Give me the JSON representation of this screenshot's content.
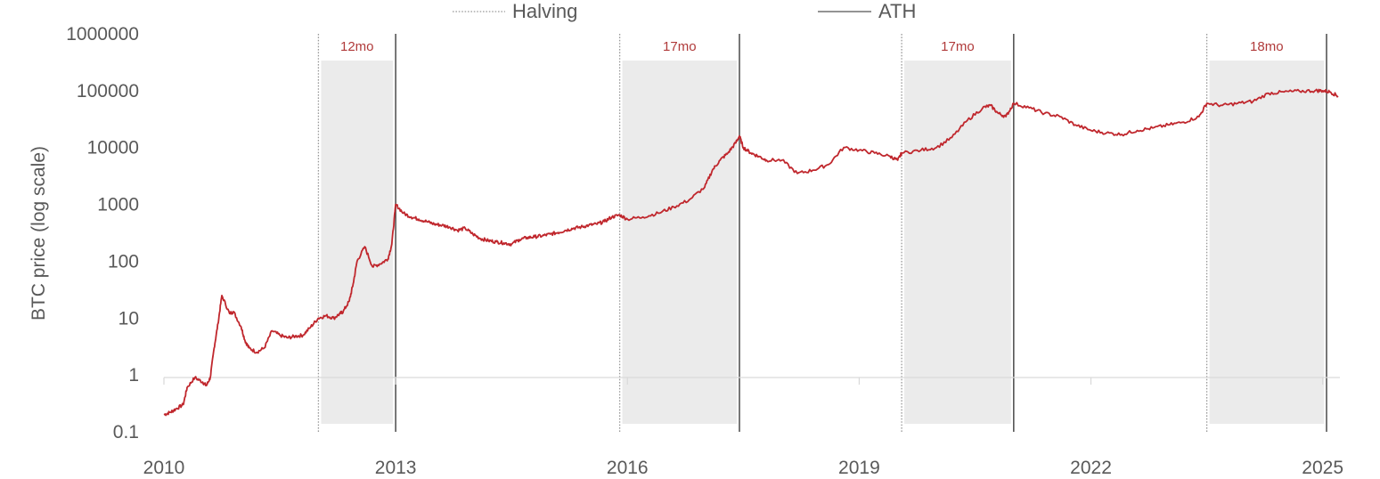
{
  "chart_data": {
    "type": "line",
    "title": "",
    "xlabel": "",
    "ylabel": "BTC price (log scale)",
    "yscale": "log",
    "ylim": [
      0.1,
      1000000
    ],
    "xlim": [
      2010.0,
      2025.2
    ],
    "y_ticks": [
      {
        "value": 0.1,
        "label": "0.1"
      },
      {
        "value": 1,
        "label": "1"
      },
      {
        "value": 10,
        "label": "10"
      },
      {
        "value": 100,
        "label": "100"
      },
      {
        "value": 1000,
        "label": "1000"
      },
      {
        "value": 10000,
        "label": "10000"
      },
      {
        "value": 100000,
        "label": "100000"
      },
      {
        "value": 1000000,
        "label": "1000000"
      }
    ],
    "x_ticks": [
      {
        "value": 2010,
        "label": "2010"
      },
      {
        "value": 2013,
        "label": "2013"
      },
      {
        "value": 2016,
        "label": "2016"
      },
      {
        "value": 2019,
        "label": "2019"
      },
      {
        "value": 2022,
        "label": "2022"
      },
      {
        "value": 2025,
        "label": "2025"
      }
    ],
    "legend": {
      "placement": "top",
      "entries": [
        {
          "name": "Halving",
          "style": "dotted",
          "color": "#9a9a9a"
        },
        {
          "name": "ATH",
          "style": "solid",
          "color": "#555555"
        }
      ]
    },
    "colors": {
      "series": "#c0272d",
      "series_in_period": "#d06060",
      "shade": "#ebebeb",
      "halving_line": "#9a9a9a",
      "ath_line": "#555555",
      "period_label": "#b03a3a",
      "axis_text": "#595959"
    },
    "periods": [
      {
        "halving": 2012.0,
        "ath": 2013.0,
        "label": "12mo"
      },
      {
        "halving": 2015.9,
        "ath": 2017.45,
        "label": "17mo"
      },
      {
        "halving": 2019.55,
        "ath": 2021.0,
        "label": "17mo"
      },
      {
        "halving": 2023.5,
        "ath": 2025.05,
        "label": "18mo"
      }
    ],
    "series": [
      {
        "name": "BTC price",
        "x": [
          2010.0,
          2010.08,
          2010.15,
          2010.25,
          2010.3,
          2010.4,
          2010.5,
          2010.55,
          2010.6,
          2010.65,
          2010.7,
          2010.75,
          2010.85,
          2010.9,
          2011.0,
          2011.05,
          2011.1,
          2011.2,
          2011.3,
          2011.4,
          2011.5,
          2011.6,
          2011.7,
          2011.8,
          2011.9,
          2012.0,
          2012.1,
          2012.2,
          2012.28,
          2012.32,
          2012.4,
          2012.45,
          2012.5,
          2012.6,
          2012.7,
          2012.8,
          2012.9,
          2012.95,
          2013.0,
          2013.1,
          2013.2,
          2013.3,
          2013.4,
          2013.5,
          2013.6,
          2013.7,
          2013.8,
          2013.9,
          2014.0,
          2014.1,
          2014.2,
          2014.3,
          2014.4,
          2014.5,
          2014.6,
          2014.7,
          2014.8,
          2014.9,
          2015.0,
          2015.1,
          2015.2,
          2015.3,
          2015.4,
          2015.5,
          2015.6,
          2015.7,
          2015.8,
          2015.9,
          2016.0,
          2016.2,
          2016.4,
          2016.6,
          2016.8,
          2017.0,
          2017.1,
          2017.2,
          2017.3,
          2017.4,
          2017.45,
          2017.5,
          2017.6,
          2017.7,
          2017.8,
          2018.0,
          2018.2,
          2018.4,
          2018.6,
          2018.8,
          2019.0,
          2019.2,
          2019.4,
          2019.5,
          2019.55,
          2019.8,
          2020.0,
          2020.2,
          2020.4,
          2020.6,
          2020.7,
          2020.8,
          2020.9,
          2021.0,
          2021.2,
          2021.4,
          2021.6,
          2021.8,
          2022.0,
          2022.2,
          2022.4,
          2022.6,
          2022.8,
          2023.0,
          2023.2,
          2023.4,
          2023.5,
          2023.7,
          2023.9,
          2024.1,
          2024.3,
          2024.5,
          2024.7,
          2024.9,
          2025.0,
          2025.1,
          2025.2
        ],
        "y": [
          0.2,
          0.22,
          0.25,
          0.3,
          0.6,
          0.9,
          0.75,
          0.65,
          0.9,
          3.0,
          8.0,
          25.0,
          12.0,
          13.0,
          7.0,
          4.0,
          3.0,
          2.5,
          3.0,
          6.0,
          5.0,
          4.5,
          4.8,
          5.0,
          7.0,
          10.0,
          11.0,
          10.0,
          12.0,
          13.0,
          20.0,
          40.0,
          100.0,
          180.0,
          80.0,
          90.0,
          110.0,
          200.0,
          1000.0,
          700.0,
          600.0,
          550.0,
          500.0,
          450.0,
          430.0,
          400.0,
          350.0,
          380.0,
          300.0,
          250.0,
          230.0,
          220.0,
          210.0,
          200.0,
          240.0,
          260.0,
          270.0,
          280.0,
          300.0,
          320.0,
          350.0,
          380.0,
          400.0,
          430.0,
          450.0,
          500.0,
          600.0,
          650.0,
          550.0,
          600.0,
          700.0,
          900.0,
          1200.0,
          2000.0,
          4000.0,
          6000.0,
          8000.0,
          12000.0,
          16000.0,
          10000.0,
          8000.0,
          7000.0,
          6000.0,
          6000.0,
          3500.0,
          4000.0,
          5000.0,
          10000.0,
          9000.0,
          8000.0,
          7000.0,
          6000.0,
          8000.0,
          9000.0,
          10000.0,
          15000.0,
          30000.0,
          50000.0,
          55000.0,
          40000.0,
          35000.0,
          60000.0,
          50000.0,
          40000.0,
          35000.0,
          25000.0,
          20000.0,
          18000.0,
          17000.0,
          20000.0,
          22000.0,
          25000.0,
          28000.0,
          35000.0,
          60000.0,
          55000.0,
          60000.0,
          65000.0,
          90000.0,
          95000.0,
          98000.0,
          100000.0,
          100000.0,
          95000.0,
          80000.0
        ]
      }
    ]
  }
}
